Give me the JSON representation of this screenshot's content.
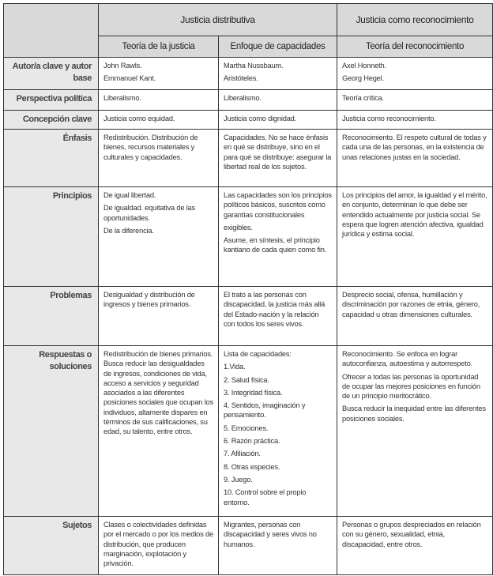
{
  "header": {
    "group1": "Justicia distributiva",
    "group2": "Justicia como reconocimiento",
    "sub": [
      "Teoría de la justicia",
      "Enfoque de capacidades",
      "Teoría del reconocimiento"
    ]
  },
  "rows": [
    {
      "label": "Autor/a clave y autor base",
      "cells": [
        [
          "John Rawls.",
          "Emmanuel Kant."
        ],
        [
          "Martha Nussbaum.",
          "Aristóteles."
        ],
        [
          "Axel Honneth.",
          "Georg Hegel."
        ]
      ]
    },
    {
      "label": "Perspectiva política",
      "cells": [
        [
          "Liberalismo."
        ],
        [
          "Liberalismo."
        ],
        [
          "Teoría crítica."
        ]
      ]
    },
    {
      "label": "Concepción clave",
      "cells": [
        [
          "Justicia como equidad."
        ],
        [
          "Justicia como dignidad."
        ],
        [
          "Justicia como reconocimiento."
        ]
      ]
    },
    {
      "label": "Énfasis",
      "cells": [
        [
          "Redistribución. Distribución de bienes, recursos materiales y culturales y capacidades."
        ],
        [
          "Capacidades. No se hace énfasis en qué se distribuye, sino en el para qué se distribuye: asegurar la libertad real de los sujetos."
        ],
        [
          "Reconocimiento. El respeto cultural de todas y cada una de las personas, en la existencia de unas relaciones justas en la sociedad."
        ]
      ]
    },
    {
      "label": "Principios",
      "cells": [
        [
          "De igual libertad.",
          "De igualdad. equitativa de las oportunidades.",
          "De la diferencia."
        ],
        [
          "Las capacidades son los principios políticos básicos, suscritos como garantías constitucionales",
          "exigibles.",
          "Asume, en síntesis, el principio kantiano de cada quien como fin."
        ],
        [
          "Los principios del amor, la igualdad y el mérito, en conjunto, determinan lo que debe ser entendido actualmente por justicia social. Se espera que logren atención afectiva, igualdad jurídica y estima social."
        ]
      ]
    },
    {
      "label": "Problemas",
      "cells": [
        [
          "Desigualdad y distribución de ingresos y bienes primarios."
        ],
        [
          "El trato a las personas con discapacidad, la justicia más allá del Estado-nación y la relación con todos los seres vivos."
        ],
        [
          "Desprecio social, ofensa, humillación y discriminación por razones de etnia, género, capacidad u otras dimensiones culturales."
        ]
      ]
    },
    {
      "label": "Respuestas o soluciones",
      "cells": [
        [
          "Redistribución de bienes primarios. Busca reducir las desigualdades de ingresos, condiciones de vida, acceso a servicios y seguridad asociados a las diferentes posiciones sociales que ocupan los individuos, altamente dispares en términos de sus calificaciones, su edad, su talento, entre otros."
        ],
        [
          "Lista de capacidades:",
          "1.Vida.",
          "2. Salud física.",
          "3. Integridad física.",
          "4. Sentidos, imaginación y pensamiento.",
          "5. Emociones.",
          "6. Razón práctica.",
          "7. Afiliación.",
          "8. Otras especies.",
          "9. Juego.",
          "10. Control sobre el propio entorno."
        ],
        [
          "Reconocimiento. Se enfoca en lograr autoconfianza, autoestima y autorrespeto.",
          "Ofrecer a todas las personas la oportunidad de ocupar las mejores posiciones en función de un principio meritocrático.",
          "Busca reducir la inequidad entre las diferentes posiciones sociales."
        ]
      ]
    },
    {
      "label": "Sujetos",
      "cells": [
        [
          "Clases o colectividades definidas por el mercado o por los medios de distribución, que producen marginación, explotación y privación."
        ],
        [
          "Migrantes, personas con discapacidad y seres vivos no humanos."
        ],
        [
          "Personas o grupos despreciados en relación con su género, sexualidad, etnia, discapacidad, entre otros."
        ]
      ]
    }
  ]
}
